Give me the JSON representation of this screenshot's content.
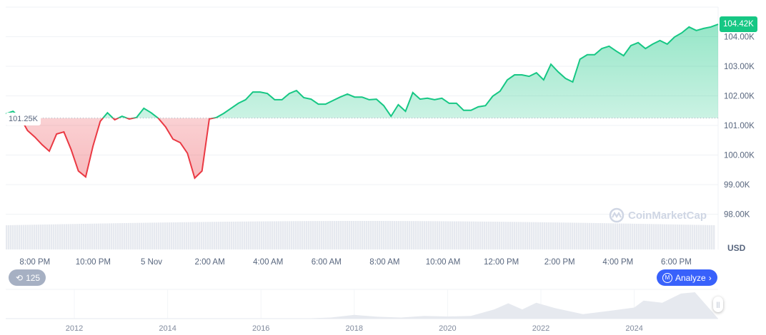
{
  "chart_data": {
    "type": "area",
    "currency": "USD",
    "x_start": "19:00",
    "x_interval_minutes": 15,
    "values": [
      101.39,
      101.48,
      101.27,
      100.83,
      100.61,
      100.35,
      100.13,
      100.71,
      100.78,
      100.18,
      99.46,
      99.26,
      100.3,
      101.14,
      101.43,
      101.19,
      101.31,
      101.22,
      101.27,
      101.58,
      101.43,
      101.24,
      100.95,
      100.54,
      100.42,
      100.06,
      99.22,
      99.46,
      101.22,
      101.27,
      101.41,
      101.58,
      101.75,
      101.87,
      102.13,
      102.13,
      102.08,
      101.87,
      101.87,
      102.08,
      102.18,
      101.94,
      101.89,
      101.72,
      101.72,
      101.84,
      101.96,
      102.06,
      101.96,
      101.96,
      101.87,
      101.89,
      101.67,
      101.31,
      101.7,
      101.48,
      102.11,
      101.89,
      101.92,
      101.87,
      101.92,
      101.75,
      101.75,
      101.51,
      101.51,
      101.63,
      101.67,
      101.99,
      102.16,
      102.54,
      102.71,
      102.71,
      102.66,
      102.78,
      102.54,
      103.07,
      102.81,
      102.59,
      102.47,
      103.24,
      103.39,
      103.39,
      103.6,
      103.68,
      103.51,
      103.36,
      103.7,
      103.8,
      103.6,
      103.75,
      103.87,
      103.75,
      103.99,
      104.13,
      104.33,
      104.21,
      104.28,
      104.33,
      104.42
    ],
    "baseline": 101.25,
    "baseline_label": "101.25K",
    "current_label": "104.42K",
    "ylim": [
      97.3,
      105.2
    ],
    "y_ticks": [
      "98.00K",
      "99.00K",
      "100.00K",
      "101.00K",
      "102.00K",
      "103.00K",
      "104.00K"
    ],
    "y_tick_values": [
      98,
      99,
      100,
      101,
      102,
      103,
      104
    ],
    "x_ticks": [
      "8:00 PM",
      "10:00 PM",
      "5 Nov",
      "2:00 AM",
      "4:00 AM",
      "6:00 AM",
      "8:00 AM",
      "10:00 AM",
      "12:00 PM",
      "2:00 PM",
      "4:00 PM",
      "6:00 PM"
    ],
    "x_tick_hours": [
      1,
      3,
      5,
      7,
      9,
      11,
      13,
      15,
      17,
      19,
      21,
      23
    ],
    "ylabel": "USD",
    "colors": {
      "up": "#16c784",
      "down": "#ea3943",
      "volume": "#e6e9ef"
    },
    "grid": true,
    "navigator": {
      "years": [
        "2012",
        "2014",
        "2016",
        "2018",
        "2020",
        "2022",
        "2024"
      ],
      "year_values": [
        2012,
        2014,
        2016,
        2018,
        2020,
        2022,
        2024
      ],
      "x": [
        2010.6,
        2012,
        2013,
        2014,
        2015,
        2016,
        2017,
        2017.5,
        2018,
        2018.5,
        2019,
        2019.5,
        2020,
        2020.5,
        2021,
        2021.3,
        2021.6,
        2021.9,
        2022.3,
        2022.9,
        2023.5,
        2024,
        2024.2,
        2024.6,
        2025,
        2025.3
      ],
      "values": [
        0,
        0.01,
        0.5,
        0.5,
        0.3,
        0.4,
        1,
        4,
        14,
        7,
        4,
        10,
        8,
        10,
        35,
        58,
        35,
        60,
        40,
        17,
        30,
        42,
        68,
        60,
        95,
        100
      ]
    }
  },
  "watermark": "CoinMarketCap",
  "controls": {
    "history_count": "125",
    "analyze_label": "Analyze"
  }
}
